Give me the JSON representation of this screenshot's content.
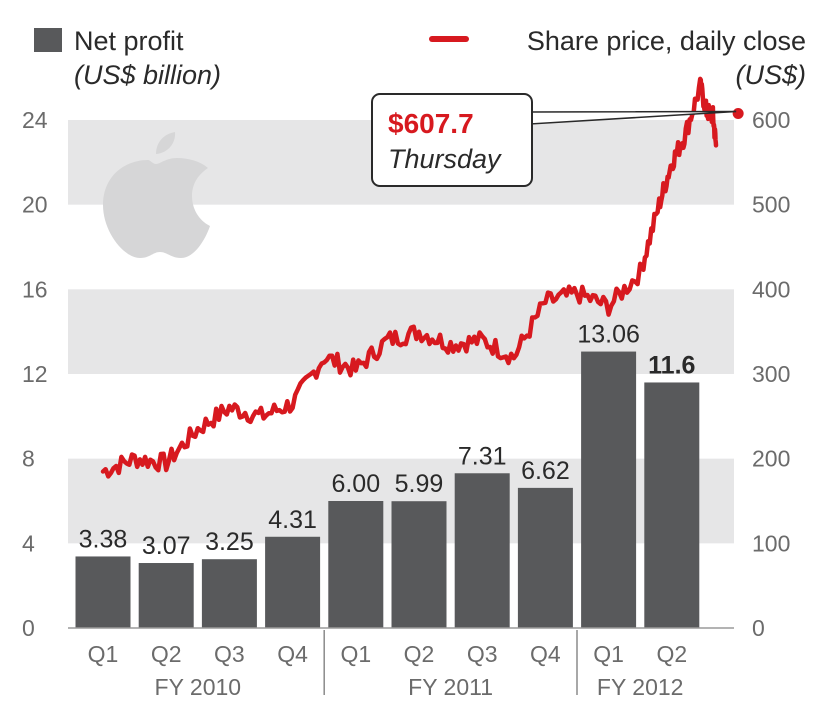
{
  "legend": {
    "bars_label": "Net profit",
    "bars_unit": "(US$ billion)",
    "line_label": "Share price, daily close",
    "line_unit": "(US$)"
  },
  "callout": {
    "price": "$607.7",
    "day": "Thursday"
  },
  "colors": {
    "bar": "#58595b",
    "line": "#d7191f",
    "band": "#e6e6e7",
    "text": "#2a2a2a",
    "tick": "#6b6b6b"
  },
  "logo_icon": "apple-logo-icon",
  "chart_data": {
    "type": "bar",
    "left_axis": {
      "ticks": [
        "0",
        "4",
        "8",
        "12",
        "16",
        "20",
        "24"
      ],
      "ylim": [
        0,
        24
      ]
    },
    "right_axis": {
      "ticks": [
        "0",
        "100",
        "200",
        "300",
        "400",
        "500",
        "600"
      ],
      "ylim": [
        0,
        600
      ]
    },
    "categories": [
      "Q1",
      "Q2",
      "Q3",
      "Q4",
      "Q1",
      "Q2",
      "Q3",
      "Q4",
      "Q1",
      "Q2"
    ],
    "groups": [
      {
        "label": "FY 2010",
        "count": 4
      },
      {
        "label": "FY 2011",
        "count": 4
      },
      {
        "label": "FY 2012",
        "count": 2
      }
    ],
    "series": [
      {
        "values": [
          3.38,
          3.07,
          3.25,
          4.31,
          6.0,
          5.99,
          7.31,
          6.62,
          13.06,
          11.6
        ],
        "labels": [
          "3.38",
          "3.07",
          "3.25",
          "4.31",
          "6.00",
          "5.99",
          "7.31",
          "6.62",
          "13.06",
          "11.6"
        ],
        "bold_index": 9
      }
    ],
    "share_price": {
      "x_position_in_quarters": [
        0.0,
        0.5,
        1.0,
        1.5,
        2.0,
        2.5,
        3.0,
        3.5,
        4.0,
        4.5,
        5.0,
        5.5,
        6.0,
        6.5,
        7.0,
        7.5,
        8.0,
        8.5,
        8.8,
        9.0,
        9.2,
        9.45,
        9.55,
        9.65,
        9.7
      ],
      "close_usd": [
        185,
        200,
        195,
        235,
        260,
        250,
        265,
        320,
        305,
        340,
        350,
        335,
        340,
        320,
        385,
        395,
        380,
        420,
        500,
        550,
        580,
        640,
        610,
        605,
        570
      ]
    },
    "highlight_point": {
      "x_position_in_quarters": 10.05,
      "close_usd": 607.7
    },
    "grid": "alternating bands"
  }
}
